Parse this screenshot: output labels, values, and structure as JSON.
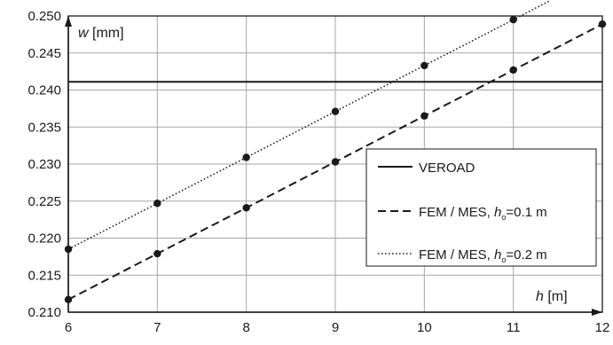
{
  "chart_data": {
    "type": "line",
    "xlabel": {
      "symbol": "h",
      "unit": "[m]"
    },
    "ylabel": {
      "symbol": "w",
      "unit": "[mm]"
    },
    "xlim": [
      6,
      12
    ],
    "ylim": [
      0.21,
      0.25
    ],
    "x_ticks": [
      6,
      7,
      8,
      9,
      10,
      11,
      12
    ],
    "y_ticks": [
      "0.210",
      "0.215",
      "0.220",
      "0.225",
      "0.230",
      "0.235",
      "0.240",
      "0.245",
      "0.250"
    ],
    "grid": true,
    "legend_position": "bottom-right",
    "series": [
      {
        "name": "VEROAD",
        "style": "solid",
        "color": "#1a1a1a",
        "x": [
          6,
          12
        ],
        "y": [
          0.2411,
          0.2411
        ],
        "markers": false
      },
      {
        "name": "FEM / MES, h",
        "name_sub": "o",
        "name_suffix": "=0.1 m",
        "style": "dashed",
        "color": "#1a1a1a",
        "x": [
          6,
          7,
          8,
          9,
          10,
          11,
          12
        ],
        "y": [
          0.2117,
          0.2179,
          0.2241,
          0.2303,
          0.2365,
          0.2427,
          0.2489
        ],
        "markers": true
      },
      {
        "name": "FEM / MES, h",
        "name_sub": "o",
        "name_suffix": "=0.2 m",
        "style": "dotted",
        "color": "#1a1a1a",
        "x": [
          6,
          7,
          8,
          9,
          10,
          11,
          11.4
        ],
        "y": [
          0.2185,
          0.2247,
          0.2309,
          0.2371,
          0.2433,
          0.2495,
          0.252
        ],
        "marker_x": [
          6,
          7,
          8,
          9,
          10,
          11
        ],
        "markers": true
      }
    ]
  }
}
